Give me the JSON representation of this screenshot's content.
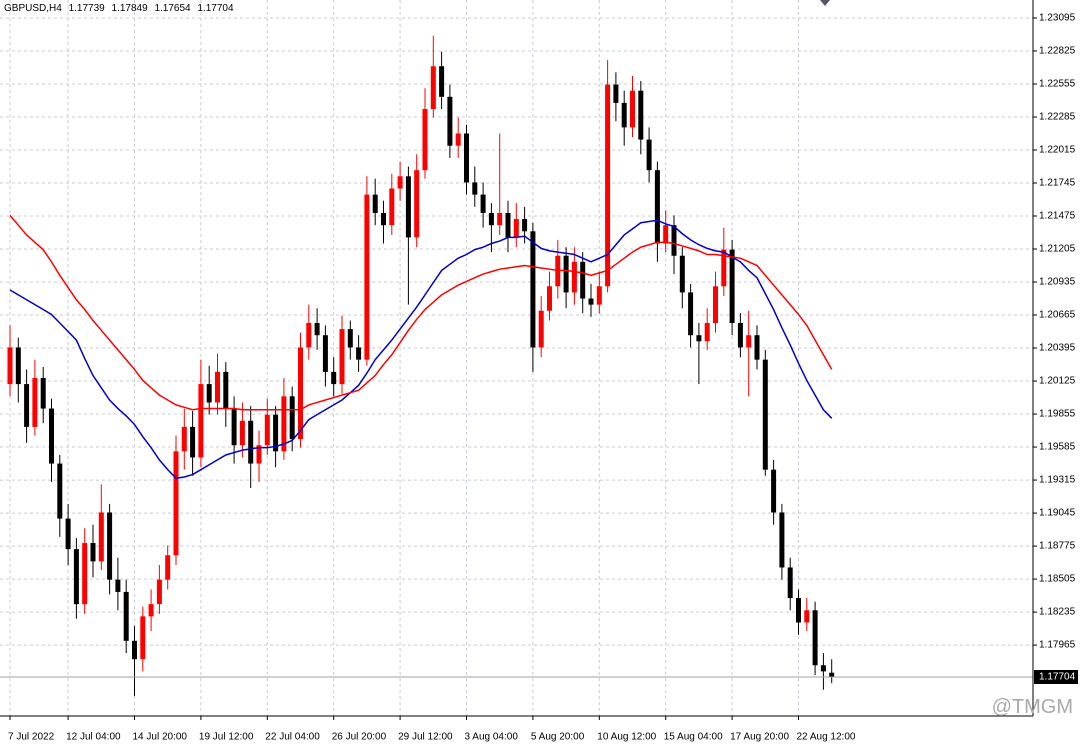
{
  "chart_data": {
    "type": "candlestick",
    "symbol_label": "GBPUSD,H4",
    "watermark": "@TMGM",
    "up_color": "#ff0000",
    "down_color": "#000000",
    "grid": true,
    "ylim": [
      1.17385,
      1.23242
    ],
    "yticks": [
      1.23095,
      1.22825,
      1.22555,
      1.22285,
      1.22015,
      1.21745,
      1.21475,
      1.21205,
      1.20935,
      1.20665,
      1.20395,
      1.20125,
      1.19855,
      1.19585,
      1.19315,
      1.19045,
      1.18775,
      1.18505,
      1.18235,
      1.17965
    ],
    "categories": [
      "7 Jul 2022",
      null,
      null,
      null,
      null,
      null,
      null,
      "12 Jul 04:00",
      null,
      null,
      null,
      null,
      null,
      null,
      null,
      "14 Jul 20:00",
      null,
      null,
      null,
      null,
      null,
      null,
      null,
      "19 Jul 12:00",
      null,
      null,
      null,
      null,
      null,
      null,
      null,
      "22 Jul 04:00",
      null,
      null,
      null,
      null,
      null,
      null,
      null,
      "26 Jul 20:00",
      null,
      null,
      null,
      null,
      null,
      null,
      null,
      "29 Jul 12:00",
      null,
      null,
      null,
      null,
      null,
      null,
      null,
      "3 Aug 04:00",
      null,
      null,
      null,
      null,
      null,
      null,
      null,
      "5 Aug 20:00",
      null,
      null,
      null,
      null,
      null,
      null,
      null,
      "10 Aug 12:00",
      null,
      null,
      null,
      null,
      null,
      null,
      null,
      "15 Aug 04:00",
      null,
      null,
      null,
      null,
      null,
      null,
      null,
      "17 Aug 20:00",
      null,
      null,
      null,
      null,
      null,
      null,
      null,
      "22 Aug 12:00",
      null,
      null,
      null,
      null
    ],
    "ohlc": {
      "open": [
        1.201,
        1.204,
        1.201,
        1.1975,
        1.2015,
        1.199,
        1.1945,
        1.19,
        1.1875,
        1.183,
        1.188,
        1.1865,
        1.1905,
        1.185,
        1.184,
        1.18,
        1.1785,
        1.182,
        1.183,
        1.185,
        1.187,
        1.1955,
        1.1975,
        1.195,
        1.201,
        1.1995,
        1.202,
        1.199,
        1.196,
        1.198,
        1.1945,
        1.196,
        1.1985,
        1.1955,
        1.2,
        1.1965,
        1.204,
        1.206,
        1.205,
        1.202,
        1.201,
        1.2055,
        1.204,
        1.203,
        1.2165,
        1.215,
        1.214,
        1.217,
        1.218,
        1.213,
        1.2185,
        1.2235,
        1.227,
        1.2245,
        1.2205,
        1.2215,
        1.2175,
        1.2165,
        1.215,
        1.214,
        1.215,
        1.213,
        1.2145,
        1.2135,
        1.204,
        1.207,
        1.209,
        1.2115,
        1.2085,
        1.211,
        1.208,
        1.2075,
        1.209,
        1.2255,
        1.224,
        1.222,
        1.225,
        1.221,
        1.2185,
        1.2125,
        1.214,
        1.2115,
        1.2085,
        1.205,
        1.2045,
        1.206,
        1.209,
        1.212,
        1.206,
        1.204,
        1.205,
        1.203,
        1.194,
        1.1905,
        1.186,
        1.1835,
        1.1815,
        1.1825,
        1.178,
        1.17739
      ],
      "high": [
        1.2058,
        1.2048,
        1.2022,
        1.203,
        1.2024,
        1.1998,
        1.1952,
        1.1912,
        1.1884,
        1.1892,
        1.1895,
        1.1928,
        1.1912,
        1.1868,
        1.185,
        1.1812,
        1.1828,
        1.1842,
        1.1862,
        1.1878,
        1.1968,
        1.199,
        1.1988,
        1.203,
        1.2025,
        1.2035,
        1.2028,
        1.2,
        1.1995,
        1.1992,
        1.1972,
        1.1998,
        1.1992,
        1.2015,
        1.2008,
        1.2052,
        1.2075,
        1.2072,
        1.2058,
        1.2032,
        1.2066,
        1.2062,
        1.205,
        1.218,
        1.2178,
        1.216,
        1.2182,
        1.2192,
        1.2188,
        1.2198,
        1.2252,
        1.2295,
        1.2282,
        1.2255,
        1.2228,
        1.2222,
        1.2188,
        1.2175,
        1.2158,
        1.2215,
        1.216,
        1.2158,
        1.2155,
        1.2142,
        1.2082,
        1.2102,
        1.2128,
        1.2122,
        1.2122,
        1.2118,
        1.2092,
        1.2102,
        1.2275,
        1.2265,
        1.225,
        1.2262,
        1.2258,
        1.222,
        1.2192,
        1.2152,
        1.2148,
        1.2122,
        1.2092,
        1.206,
        1.2072,
        1.2102,
        1.2138,
        1.2128,
        1.2068,
        1.207,
        1.2058,
        1.2038,
        1.1948,
        1.1912,
        1.1868,
        1.1842,
        1.1835,
        1.1832,
        1.179,
        1.17849
      ],
      "low": [
        1.2,
        1.1995,
        1.1962,
        1.1968,
        1.1978,
        1.193,
        1.1885,
        1.1862,
        1.1818,
        1.1822,
        1.1852,
        1.1858,
        1.1838,
        1.1825,
        1.179,
        1.1755,
        1.1775,
        1.1808,
        1.1822,
        1.1842,
        1.1862,
        1.194,
        1.1935,
        1.1942,
        1.1985,
        1.1985,
        1.1975,
        1.1945,
        1.195,
        1.1925,
        1.193,
        1.1952,
        1.1942,
        1.1948,
        1.1955,
        1.1958,
        1.203,
        1.2038,
        1.2008,
        1.2,
        1.2002,
        1.203,
        1.202,
        1.2025,
        1.214,
        1.2125,
        1.2132,
        1.216,
        1.2075,
        1.2122,
        1.2178,
        1.2228,
        1.2235,
        1.2195,
        1.2195,
        1.2165,
        1.2155,
        1.2138,
        1.2118,
        1.2132,
        1.2118,
        1.2122,
        1.2125,
        1.202,
        1.2032,
        1.2062,
        1.208,
        1.2072,
        1.2075,
        1.2068,
        1.2065,
        1.2068,
        1.2085,
        1.2225,
        1.2205,
        1.2212,
        1.2198,
        1.2175,
        1.211,
        1.2118,
        1.21,
        1.2072,
        1.204,
        1.201,
        1.2038,
        1.2052,
        1.2082,
        1.205,
        1.2032,
        1.2,
        1.2022,
        1.1935,
        1.1895,
        1.185,
        1.1825,
        1.1805,
        1.1808,
        1.1772,
        1.176,
        1.17654
      ],
      "close": [
        1.204,
        1.201,
        1.1975,
        1.2015,
        1.199,
        1.1945,
        1.19,
        1.1875,
        1.183,
        1.188,
        1.1865,
        1.1905,
        1.185,
        1.184,
        1.18,
        1.1785,
        1.182,
        1.183,
        1.185,
        1.187,
        1.1955,
        1.1975,
        1.195,
        1.201,
        1.1995,
        1.202,
        1.199,
        1.196,
        1.198,
        1.1945,
        1.196,
        1.1985,
        1.1955,
        1.2,
        1.1965,
        1.204,
        1.206,
        1.205,
        1.202,
        1.201,
        1.2055,
        1.204,
        1.203,
        1.2165,
        1.215,
        1.214,
        1.217,
        1.218,
        1.213,
        1.2185,
        1.2235,
        1.227,
        1.2245,
        1.2205,
        1.2215,
        1.2175,
        1.2165,
        1.215,
        1.214,
        1.215,
        1.213,
        1.2145,
        1.2135,
        1.204,
        1.207,
        1.209,
        1.2115,
        1.2085,
        1.211,
        1.208,
        1.2075,
        1.209,
        1.2255,
        1.224,
        1.222,
        1.225,
        1.221,
        1.2185,
        1.2125,
        1.214,
        1.2115,
        1.2085,
        1.205,
        1.2045,
        1.206,
        1.209,
        1.212,
        1.206,
        1.204,
        1.205,
        1.203,
        1.194,
        1.1905,
        1.186,
        1.1835,
        1.1815,
        1.1825,
        1.178,
        1.1775,
        1.17704
      ]
    },
    "moving_averages": [
      {
        "color": "#0000cc",
        "values": [
          1.2087,
          1.2083,
          1.2079,
          1.2075,
          1.2071,
          1.2067,
          1.206,
          1.2053,
          1.2046,
          1.2031,
          1.2017,
          1.2007,
          1.1997,
          1.199,
          1.1984,
          1.1977,
          1.1967,
          1.1958,
          1.1948,
          1.194,
          1.1933,
          1.1934,
          1.1936,
          1.194,
          1.1944,
          1.1948,
          1.1952,
          1.1954,
          1.1956,
          1.1957,
          1.1958,
          1.1958,
          1.1959,
          1.1961,
          1.1964,
          1.1972,
          1.1981,
          1.1985,
          1.1989,
          1.1993,
          1.1997,
          1.2003,
          1.2009,
          1.2019,
          1.203,
          1.2038,
          1.2046,
          1.2055,
          1.2064,
          1.2073,
          1.2083,
          1.2093,
          1.2103,
          1.2108,
          1.2113,
          1.2116,
          1.212,
          1.2122,
          1.2125,
          1.2127,
          1.213,
          1.213,
          1.2131,
          1.2126,
          1.2121,
          1.2119,
          1.2118,
          1.2117,
          1.2116,
          1.2113,
          1.211,
          1.2113,
          1.2116,
          1.2124,
          1.2132,
          1.2137,
          1.2142,
          1.2143,
          1.2144,
          1.2141,
          1.2139,
          1.2133,
          1.2128,
          1.2124,
          1.2121,
          1.2119,
          1.2118,
          1.2114,
          1.211,
          1.2103,
          1.2097,
          1.2084,
          1.2071,
          1.2056,
          1.2042,
          1.2027,
          1.2013,
          1.2001,
          1.1989,
          1.1982
        ]
      },
      {
        "color": "#ff0000",
        "values": [
          1.2148,
          1.214,
          1.2132,
          1.2126,
          1.212,
          1.211,
          1.2099,
          1.2089,
          1.2079,
          1.2071,
          1.2062,
          1.2054,
          1.2046,
          1.2038,
          1.203,
          1.2022,
          1.2013,
          1.2007,
          1.2001,
          1.1997,
          1.1993,
          1.1991,
          1.1989,
          1.199,
          1.199,
          1.199,
          1.199,
          1.199,
          1.1989,
          1.1989,
          1.1989,
          1.1989,
          1.1989,
          1.1989,
          1.1989,
          1.1989,
          1.1993,
          1.1995,
          1.1997,
          1.1999,
          1.2001,
          1.2003,
          1.2005,
          1.2011,
          1.2017,
          1.2026,
          1.2034,
          1.2044,
          1.2054,
          1.2063,
          1.2071,
          1.2077,
          1.2083,
          1.2087,
          1.2091,
          1.2094,
          1.2097,
          1.21,
          1.2102,
          1.2104,
          1.2105,
          1.2106,
          1.2107,
          1.2106,
          1.2105,
          1.2104,
          1.2103,
          1.2103,
          1.2102,
          1.2101,
          1.2099,
          1.2101,
          1.2103,
          1.2108,
          1.2113,
          1.2118,
          1.2122,
          1.2124,
          1.2126,
          1.2126,
          1.2125,
          1.2123,
          1.2121,
          1.2119,
          1.2116,
          1.2116,
          1.2115,
          1.2114,
          1.2113,
          1.211,
          1.2107,
          1.2099,
          1.2091,
          1.2083,
          1.2075,
          1.2067,
          1.2058,
          1.2046,
          1.2034,
          1.2022
        ]
      }
    ]
  }
}
